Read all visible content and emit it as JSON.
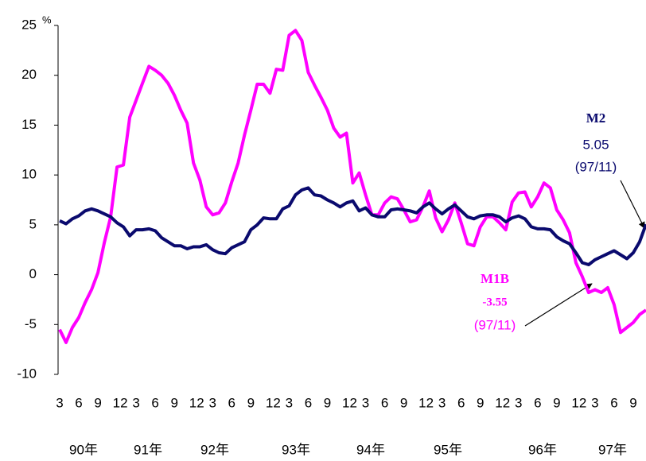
{
  "chart_data": {
    "type": "line",
    "unit": "%",
    "categories": [
      "3",
      null,
      null,
      "6",
      null,
      null,
      "9",
      null,
      null,
      "12",
      null,
      null,
      "3",
      null,
      null,
      "6",
      null,
      null,
      "9",
      null,
      null,
      "12",
      null,
      null,
      "3",
      null,
      null,
      "6",
      null,
      null,
      "9",
      null,
      null,
      "12",
      null,
      null,
      "3",
      null,
      null,
      "6",
      null,
      null,
      "9",
      null,
      null,
      "12",
      null,
      null,
      "3",
      null,
      null,
      "6",
      null,
      null,
      "9",
      null,
      null,
      "12",
      null,
      null,
      "3",
      null,
      null,
      "6",
      null,
      null,
      "9",
      null,
      null,
      "12",
      null,
      null,
      "3",
      null,
      null,
      "6",
      null,
      null,
      "9",
      null,
      null,
      "12",
      null,
      null,
      "3",
      null,
      null,
      "6",
      null,
      null,
      "9",
      null,
      null
    ],
    "years": [
      "90年",
      "91年",
      "92年",
      "93年",
      "94年",
      "95年",
      "96年",
      "97年"
    ],
    "series": [
      {
        "name": "M2",
        "color": "#0a0a6e",
        "value_labels": {
          "92": "5.05"
        },
        "date_label": "(97/11)",
        "values": [
          5.4,
          5.1,
          5.6,
          5.9,
          6.4,
          6.6,
          6.4,
          6.1,
          5.8,
          5.2,
          4.8,
          3.9,
          4.5,
          4.5,
          4.6,
          4.4,
          3.7,
          3.3,
          2.9,
          2.9,
          2.6,
          2.8,
          2.8,
          3.0,
          2.5,
          2.2,
          2.1,
          2.7,
          3.0,
          3.3,
          4.5,
          5.0,
          5.7,
          5.6,
          5.6,
          6.6,
          6.9,
          8.0,
          8.5,
          8.7,
          8.0,
          7.9,
          7.5,
          7.2,
          6.8,
          7.2,
          7.4,
          6.4,
          6.7,
          6.0,
          5.8,
          5.8,
          6.5,
          6.6,
          6.5,
          6.4,
          6.2,
          6.8,
          7.2,
          6.6,
          6.1,
          6.6,
          7.0,
          6.4,
          5.8,
          5.6,
          5.9,
          6.0,
          6.0,
          5.8,
          5.3,
          5.7,
          5.9,
          5.6,
          4.8,
          4.6,
          4.6,
          4.5,
          3.8,
          3.4,
          3.1,
          2.2,
          1.2,
          1.0,
          1.5,
          1.8,
          2.1,
          2.4,
          2.0,
          1.6,
          2.2,
          3.3,
          5.05
        ]
      },
      {
        "name": "M1B",
        "color": "#ff00ff",
        "value_labels": {
          "92": "-3.55"
        },
        "date_label": "(97/11)",
        "values": [
          -5.5,
          -6.8,
          -5.3,
          -4.3,
          -2.8,
          -1.5,
          0.2,
          3.2,
          5.8,
          10.8,
          11.0,
          15.8,
          17.5,
          19.2,
          20.9,
          20.5,
          20.0,
          19.2,
          18.0,
          16.5,
          15.2,
          11.2,
          9.5,
          6.8,
          6.0,
          6.2,
          7.2,
          9.3,
          11.2,
          14.0,
          16.5,
          19.1,
          19.1,
          18.2,
          20.6,
          20.5,
          24.0,
          24.5,
          23.5,
          20.3,
          19.0,
          17.8,
          16.5,
          14.7,
          13.8,
          14.2,
          9.2,
          10.2,
          8.0,
          6.0,
          6.0,
          7.2,
          7.8,
          7.6,
          6.5,
          5.3,
          5.5,
          6.8,
          8.4,
          5.7,
          4.3,
          5.5,
          7.2,
          5.2,
          3.1,
          2.9,
          4.8,
          5.8,
          5.8,
          5.2,
          4.5,
          7.3,
          8.2,
          8.3,
          6.8,
          7.8,
          9.2,
          8.7,
          6.5,
          5.5,
          4.2,
          1.2,
          -0.2,
          -1.8,
          -1.5,
          -1.8,
          -1.3,
          -3.0,
          -5.8,
          -5.3,
          -4.8,
          -4.0,
          -3.55
        ]
      }
    ],
    "ylim": [
      -10,
      25
    ],
    "yticks": [
      -10,
      -5,
      0,
      5,
      10,
      15,
      20,
      25
    ],
    "grid": false
  }
}
